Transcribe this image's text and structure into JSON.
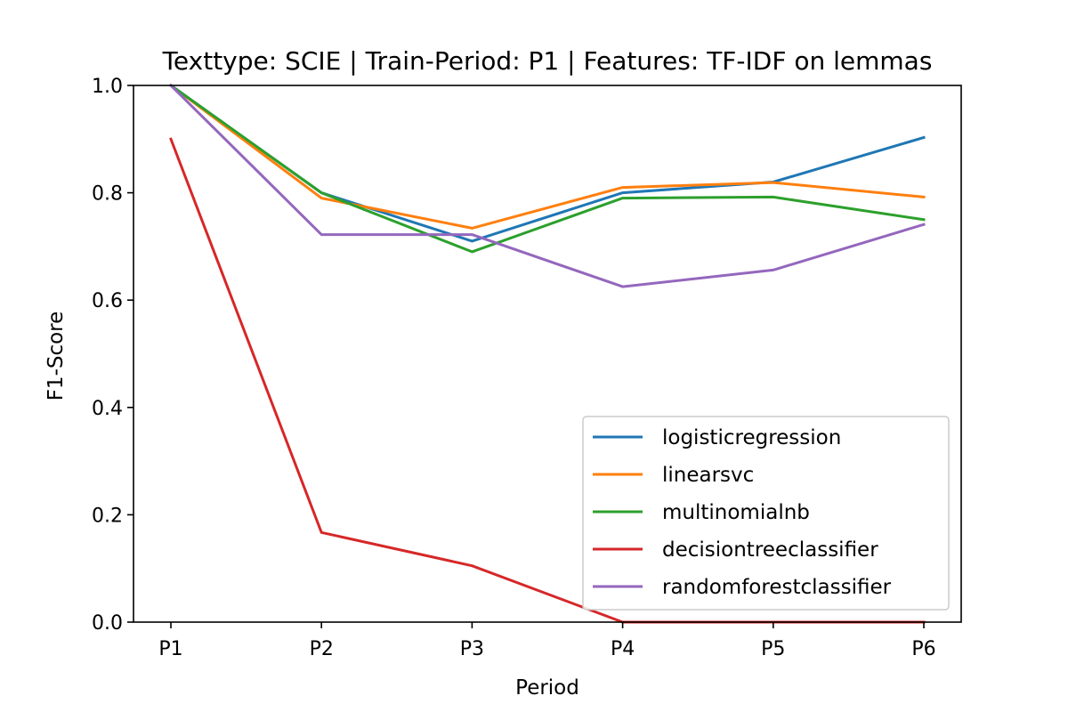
{
  "chart_data": {
    "type": "line",
    "title": "Texttype: SCIE | Train-Period: P1 | Features: TF-IDF on lemmas",
    "xlabel": "Period",
    "ylabel": "F1-Score",
    "categories": [
      "P1",
      "P2",
      "P3",
      "P4",
      "P5",
      "P6"
    ],
    "ylim": [
      0.0,
      1.0
    ],
    "yticks": [
      "0.0",
      "0.2",
      "0.4",
      "0.6",
      "0.8",
      "1.0"
    ],
    "grid": false,
    "legend_position": "lower-right",
    "series": [
      {
        "name": "logisticregression",
        "color": "#1f77b4",
        "values": [
          1.0,
          0.8,
          0.71,
          0.8,
          0.82,
          0.903
        ]
      },
      {
        "name": "linearsvc",
        "color": "#ff7f0e",
        "values": [
          1.0,
          0.79,
          0.734,
          0.81,
          0.819,
          0.792
        ]
      },
      {
        "name": "multinomialnb",
        "color": "#2ca02c",
        "values": [
          1.0,
          0.8,
          0.69,
          0.79,
          0.792,
          0.75
        ]
      },
      {
        "name": "decisiontreeclassifier",
        "color": "#d62728",
        "values": [
          0.9,
          0.167,
          0.105,
          0.0,
          0.0,
          0.0
        ]
      },
      {
        "name": "randomforestclassifier",
        "color": "#9467bd",
        "values": [
          1.0,
          0.722,
          0.722,
          0.625,
          0.656,
          0.741
        ]
      }
    ]
  }
}
